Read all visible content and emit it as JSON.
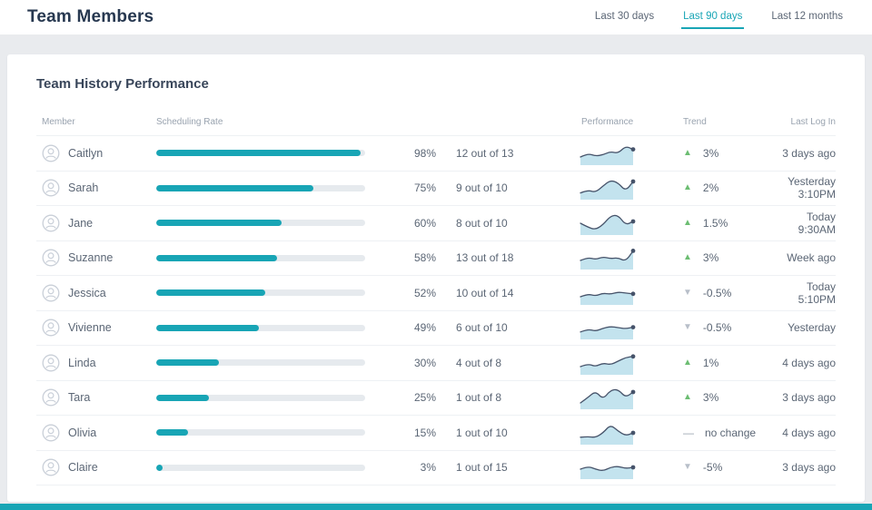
{
  "header": {
    "title": "Team Members",
    "tabs": [
      {
        "label": "Last 30 days",
        "active": false
      },
      {
        "label": "Last 90 days",
        "active": true
      },
      {
        "label": "Last 12 months",
        "active": false
      }
    ]
  },
  "card": {
    "title": "Team History Performance"
  },
  "table": {
    "columns": [
      "Member",
      "Scheduling Rate",
      "Performance",
      "Trend",
      "Last Log In"
    ],
    "rows": [
      {
        "name": "Caitlyn",
        "rate_pct": 98,
        "rate_label": "98%",
        "ratio": "12 out of 13",
        "spark": [
          0.3,
          0.5,
          0.35,
          0.42,
          0.6,
          0.5,
          0.9,
          0.72
        ],
        "trend": "up",
        "trend_label": "3%",
        "last_login": "3 days ago"
      },
      {
        "name": "Sarah",
        "rate_pct": 75,
        "rate_label": "75%",
        "ratio": "9 out of 10",
        "spark": [
          0.22,
          0.38,
          0.25,
          0.6,
          0.92,
          0.78,
          0.32,
          0.85
        ],
        "trend": "up",
        "trend_label": "2%",
        "last_login": "Yesterday 3:10PM"
      },
      {
        "name": "Jane",
        "rate_pct": 60,
        "rate_label": "60%",
        "ratio": "8 out of 10",
        "spark": [
          0.5,
          0.28,
          0.15,
          0.42,
          0.9,
          0.95,
          0.4,
          0.6
        ],
        "trend": "up",
        "trend_label": "1.5%",
        "last_login": "Today 9:30AM"
      },
      {
        "name": "Suzanne",
        "rate_pct": 58,
        "rate_label": "58%",
        "ratio": "13 out of 18",
        "spark": [
          0.35,
          0.52,
          0.4,
          0.55,
          0.45,
          0.5,
          0.3,
          0.88
        ],
        "trend": "up",
        "trend_label": "3%",
        "last_login": "Week ago"
      },
      {
        "name": "Jessica",
        "rate_pct": 52,
        "rate_label": "52%",
        "ratio": "10 out of 14",
        "spark": [
          0.3,
          0.46,
          0.34,
          0.5,
          0.44,
          0.56,
          0.5,
          0.46
        ],
        "trend": "down",
        "trend_label": "-0.5%",
        "last_login": "Today 5:10PM"
      },
      {
        "name": "Vivienne",
        "rate_pct": 49,
        "rate_label": "49%",
        "ratio": "6 out of 10",
        "spark": [
          0.26,
          0.42,
          0.3,
          0.46,
          0.56,
          0.5,
          0.44,
          0.52
        ],
        "trend": "down",
        "trend_label": "-0.5%",
        "last_login": "Yesterday"
      },
      {
        "name": "Linda",
        "rate_pct": 30,
        "rate_label": "30%",
        "ratio": "4 out of 8",
        "spark": [
          0.3,
          0.46,
          0.3,
          0.5,
          0.4,
          0.6,
          0.8,
          0.86
        ],
        "trend": "up",
        "trend_label": "1%",
        "last_login": "4 days ago"
      },
      {
        "name": "Tara",
        "rate_pct": 25,
        "rate_label": "25%",
        "ratio": "1 out of 8",
        "spark": [
          0.2,
          0.5,
          0.85,
          0.4,
          0.9,
          0.95,
          0.5,
          0.8
        ],
        "trend": "up",
        "trend_label": "3%",
        "last_login": "3 days ago"
      },
      {
        "name": "Olivia",
        "rate_pct": 15,
        "rate_label": "15%",
        "ratio": "1 out of 10",
        "spark": [
          0.26,
          0.3,
          0.24,
          0.5,
          0.95,
          0.6,
          0.34,
          0.5
        ],
        "trend": "flat",
        "trend_label": "no change",
        "last_login": "4 days ago"
      },
      {
        "name": "Claire",
        "rate_pct": 3,
        "rate_label": "3%",
        "ratio": "1 out of 15",
        "spark": [
          0.4,
          0.56,
          0.4,
          0.3,
          0.5,
          0.56,
          0.44,
          0.5
        ],
        "trend": "down",
        "trend_label": "-5%",
        "last_login": "3 days ago"
      }
    ]
  },
  "icons": {
    "trend_up": "▲",
    "trend_down": "▼",
    "trend_flat": "—"
  },
  "colors": {
    "accent": "#18a5b5",
    "green": "#6cbd72",
    "gray_arrow": "#b8bfc9",
    "spark_line": "#46536a",
    "spark_fill": "#c3e3ee"
  }
}
